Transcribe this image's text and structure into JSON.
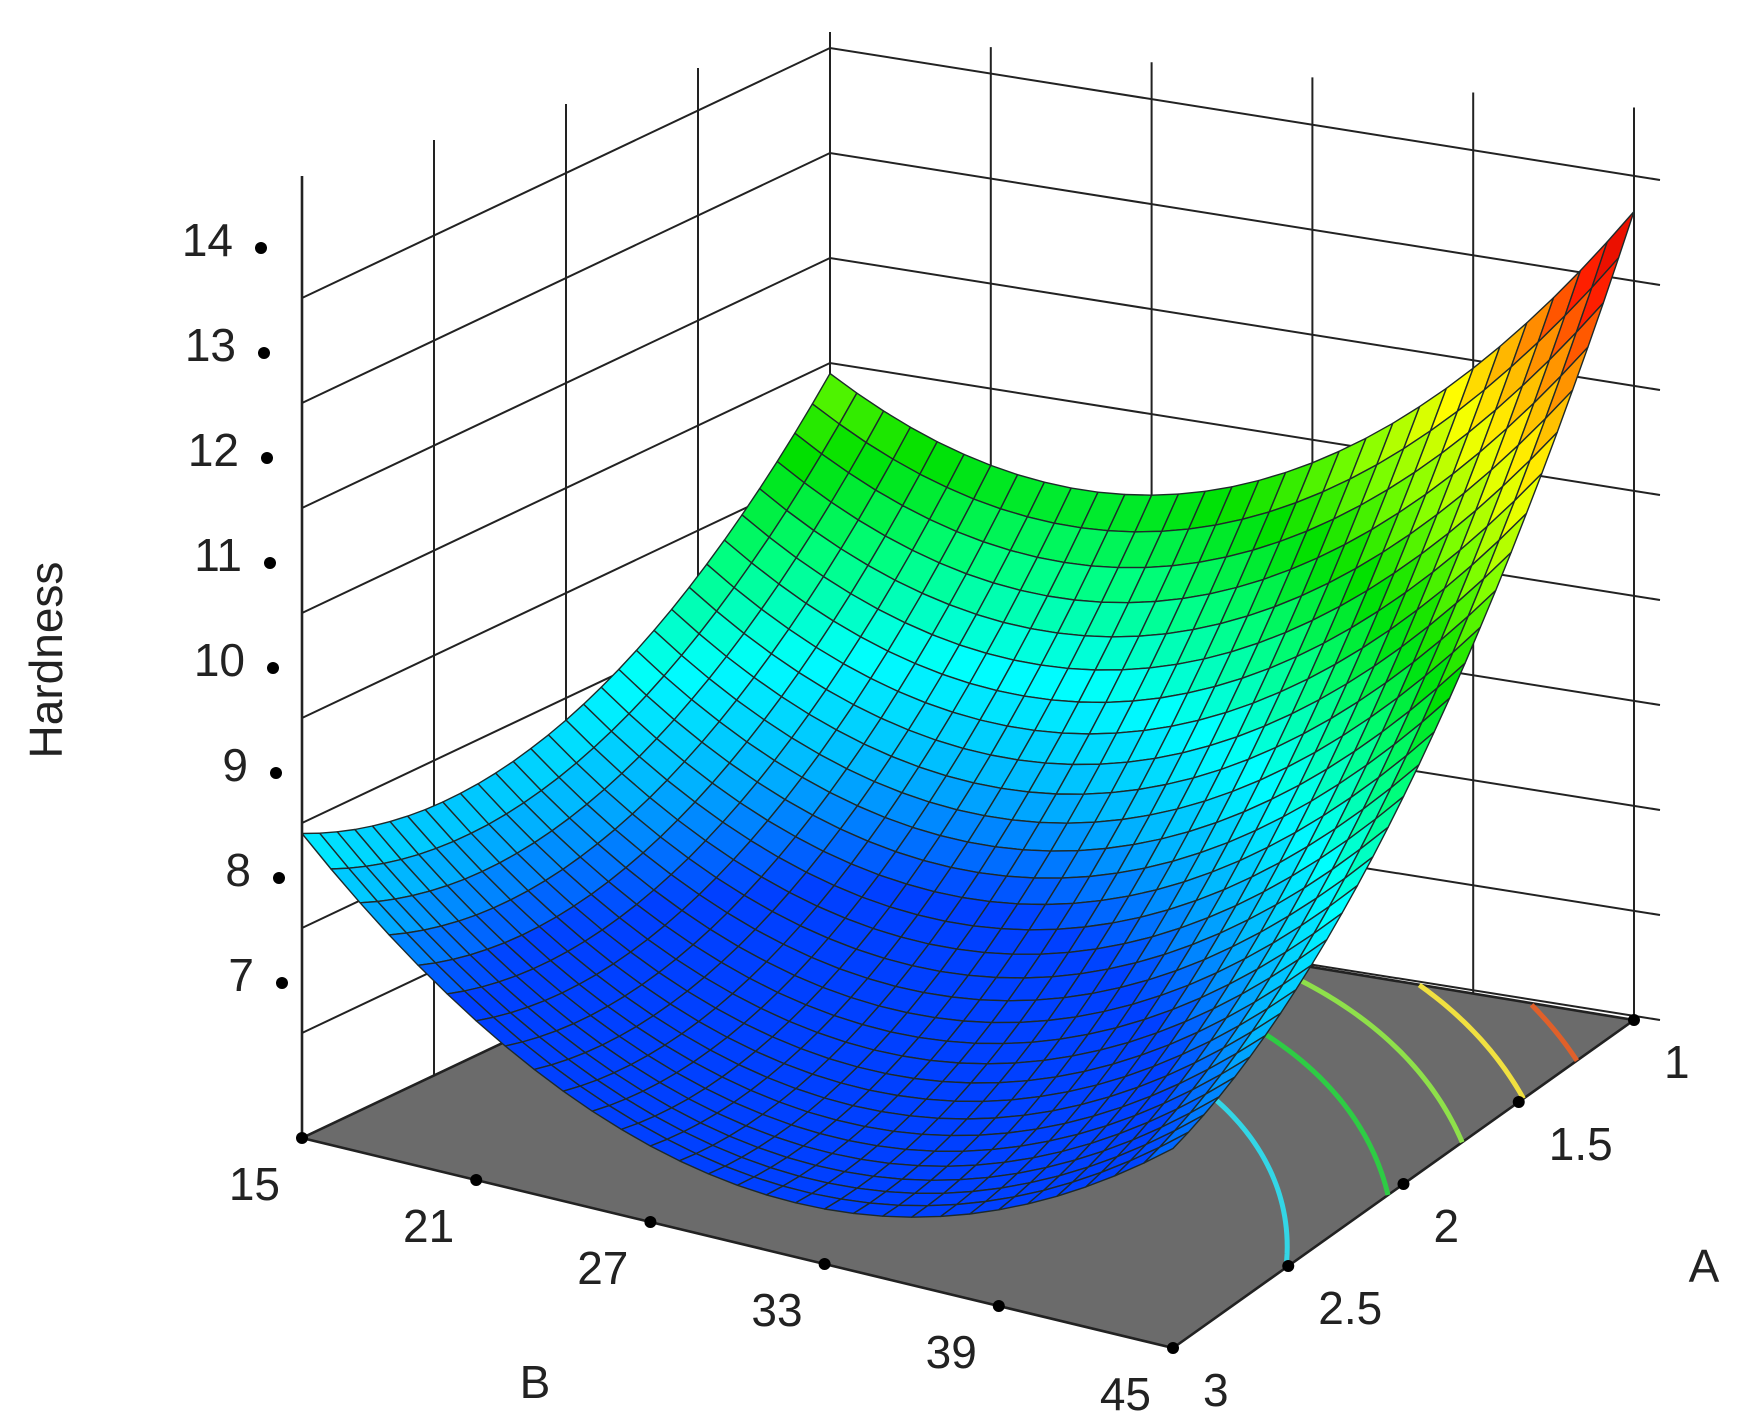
{
  "chart_data": {
    "type": "surface3d",
    "zlabel": "Hardness",
    "xlabel": "A",
    "ylabel": "B",
    "x_ticks": [
      "1",
      "1.5",
      "2",
      "2.5",
      "3"
    ],
    "y_ticks": [
      "15",
      "21",
      "27",
      "33",
      "39",
      "45"
    ],
    "z_ticks": [
      "7",
      "8",
      "9",
      "10",
      "11",
      "12",
      "13",
      "14"
    ],
    "x_range": [
      1,
      3
    ],
    "y_range": [
      15,
      45
    ],
    "z_range": [
      6,
      14
    ],
    "colormap": [
      "#0040ff",
      "#00b4ff",
      "#00ffff",
      "#00ff80",
      "#00e000",
      "#80ff00",
      "#ffff00",
      "#ffa000",
      "#ff2000",
      "#d80000"
    ],
    "floor_color": "#6b6b6b",
    "corner_values": [
      {
        "A": 1,
        "B": 15,
        "hardness": 10.9
      },
      {
        "A": 3,
        "B": 15,
        "hardness": 8.9
      },
      {
        "A": 3,
        "B": 45,
        "hardness": 7.9
      },
      {
        "A": 1,
        "B": 45,
        "hardness": 13.7
      }
    ],
    "center_value": {
      "A": 2,
      "B": 30,
      "hardness": 8.5
    },
    "contours": [
      {
        "level": 8.5,
        "color": "#33d6e6"
      },
      {
        "level": 9.5,
        "color": "#2ecc44"
      },
      {
        "level": 10.5,
        "color": "#8ee04a"
      },
      {
        "level": 11.5,
        "color": "#f0e040"
      },
      {
        "level": 12.5,
        "color": "#e0602a"
      }
    ],
    "grid": true
  }
}
